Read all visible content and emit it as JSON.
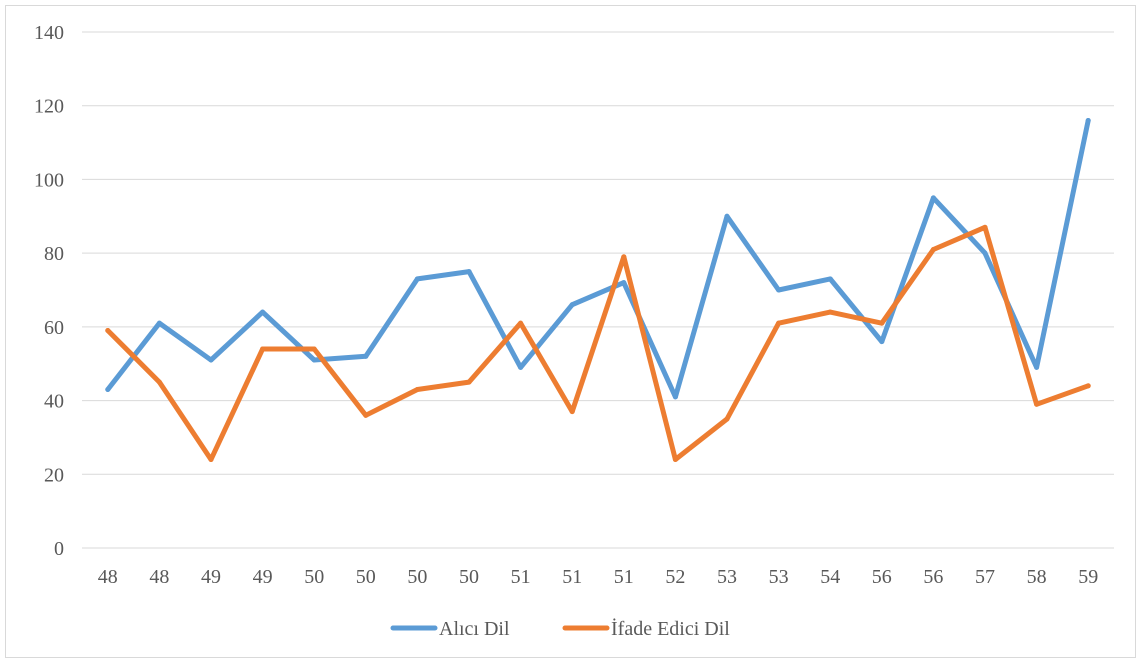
{
  "chart_data": {
    "type": "line",
    "title": "",
    "xlabel": "",
    "ylabel": "",
    "ylim": [
      0,
      140
    ],
    "yticks": [
      0,
      20,
      40,
      60,
      80,
      100,
      120,
      140
    ],
    "categories": [
      "48",
      "48",
      "49",
      "49",
      "50",
      "50",
      "50",
      "50",
      "51",
      "51",
      "51",
      "52",
      "53",
      "53",
      "54",
      "56",
      "56",
      "57",
      "58",
      "59"
    ],
    "series": [
      {
        "name": "Alıcı Dil",
        "color": "#5b9bd5",
        "values": [
          43,
          61,
          51,
          64,
          51,
          52,
          73,
          75,
          49,
          66,
          72,
          41,
          90,
          70,
          73,
          56,
          95,
          80,
          49,
          116
        ]
      },
      {
        "name": "İfade Edici Dil",
        "color": "#ed7d31",
        "values": [
          59,
          45,
          24,
          54,
          54,
          36,
          43,
          45,
          61,
          37,
          79,
          24,
          35,
          61,
          64,
          61,
          81,
          87,
          39,
          44
        ]
      }
    ],
    "grid": true,
    "legend": "bottom"
  }
}
